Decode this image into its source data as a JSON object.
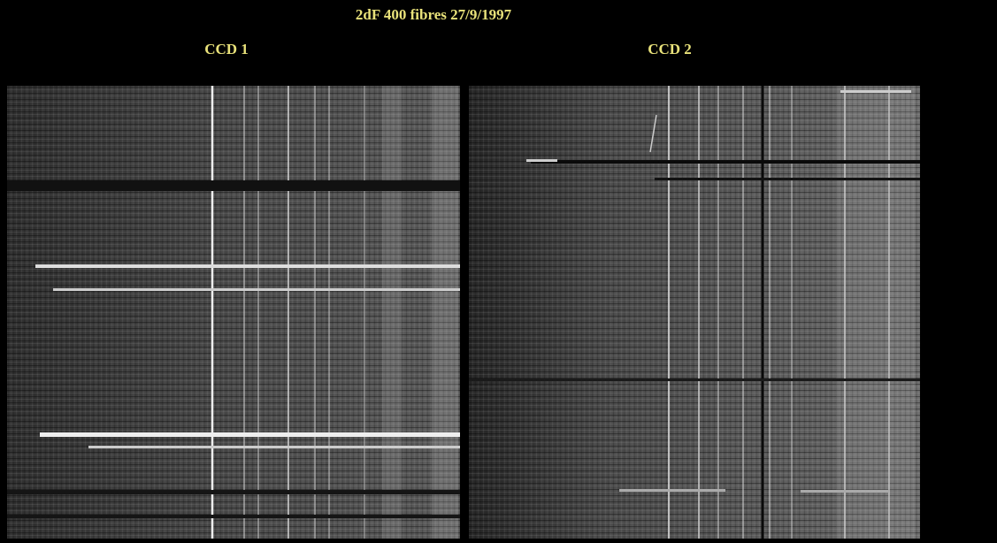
{
  "header": {
    "title": "2dF 400 fibres 27/9/1997"
  },
  "panels": [
    {
      "label": "CCD 1"
    },
    {
      "label": "CCD 2"
    }
  ]
}
